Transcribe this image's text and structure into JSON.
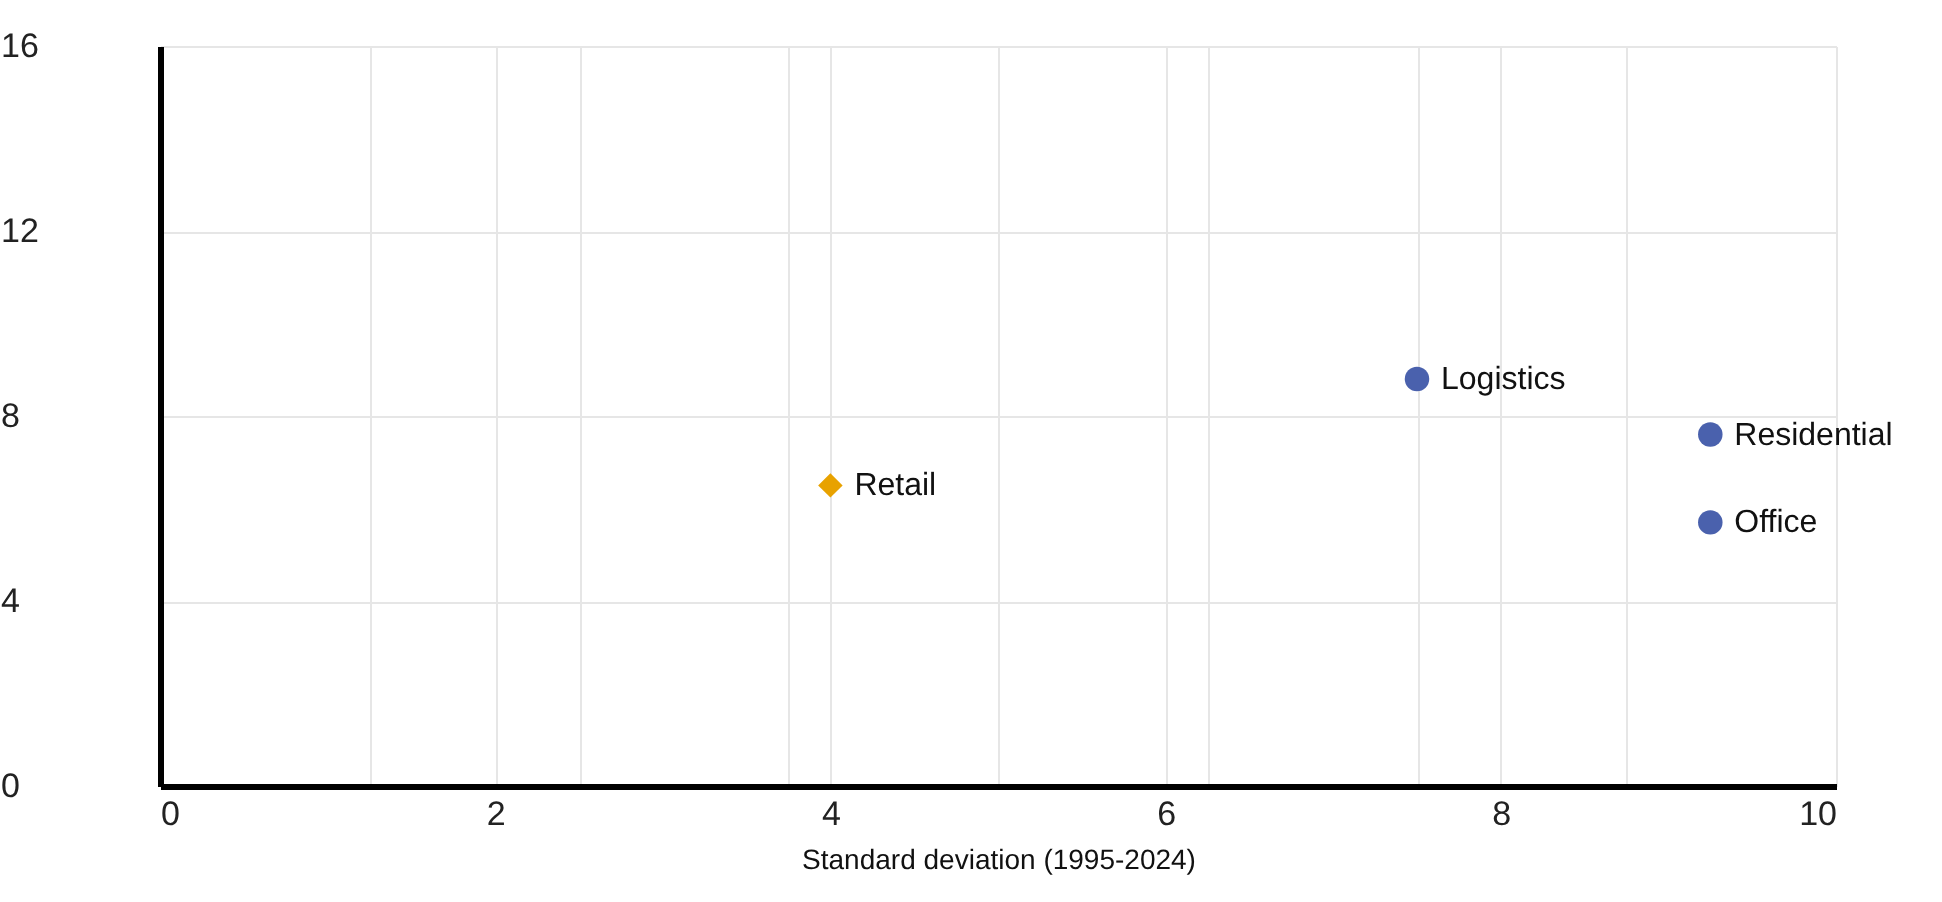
{
  "chart_data": {
    "type": "scatter",
    "xlabel": "Standard deviation (1995-2024)",
    "xlim": [
      0,
      10
    ],
    "ylim": [
      0,
      16
    ],
    "xticks": [
      0,
      {
        "value": 1.25,
        "label": null
      },
      2,
      {
        "value": 2.5,
        "label": null
      },
      {
        "value": 3.75,
        "label": null
      },
      4,
      {
        "value": 5,
        "label": null
      },
      6,
      {
        "value": 6.25,
        "label": null
      },
      {
        "value": 7.5,
        "label": null
      },
      8,
      {
        "value": 8.75,
        "label": null
      },
      10
    ],
    "yticks": [
      0,
      4,
      8,
      12,
      16
    ],
    "grid": true,
    "series": [
      {
        "name": "Retail",
        "color": "#e8a200",
        "marker": "diamond",
        "x": [
          4.0
        ],
        "values": [
          6.5
        ]
      },
      {
        "name": "Logistics",
        "color": "#4a61ad",
        "marker": "circle",
        "x": [
          7.5
        ],
        "values": [
          8.8
        ]
      },
      {
        "name": "Residential",
        "color": "#4a61ad",
        "marker": "circle",
        "x": [
          9.25
        ],
        "values": [
          7.6
        ]
      },
      {
        "name": "Office",
        "color": "#4a61ad",
        "marker": "circle",
        "x": [
          9.25
        ],
        "values": [
          5.7
        ]
      }
    ]
  }
}
